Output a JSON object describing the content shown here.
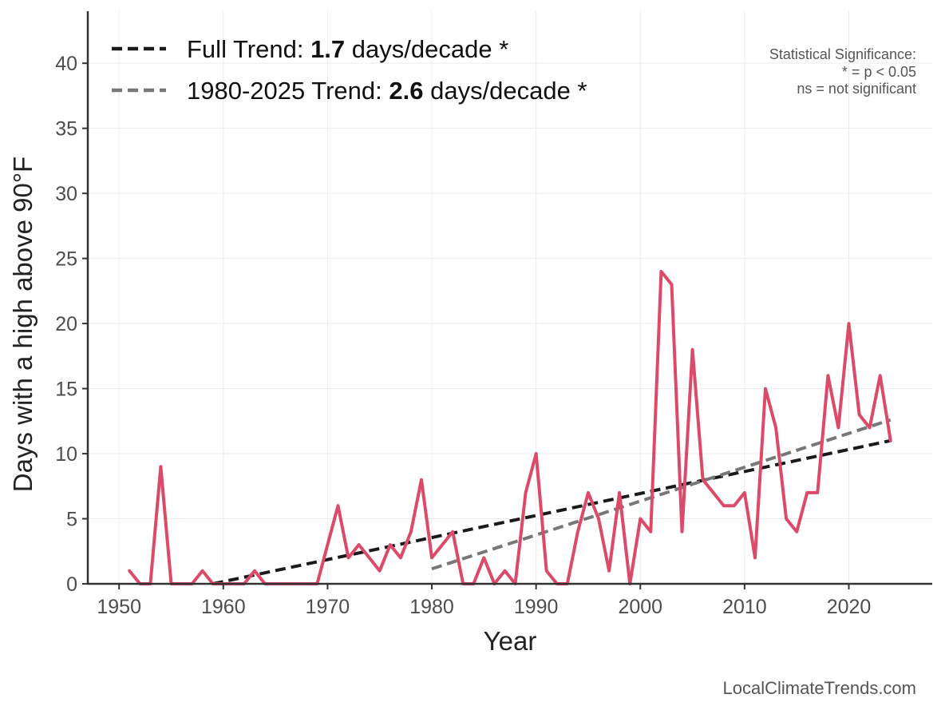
{
  "chart_data": {
    "type": "line",
    "xlabel": "Year",
    "ylabel": "Days with a high above 90°F",
    "xlim": [
      1947,
      2028
    ],
    "ylim": [
      0,
      44
    ],
    "xticks": [
      1950,
      1960,
      1970,
      1980,
      1990,
      2000,
      2010,
      2020
    ],
    "yticks": [
      0,
      5,
      10,
      15,
      20,
      25,
      30,
      35,
      40
    ],
    "grid": true,
    "series": [
      {
        "name": "Days with a high above 90°F",
        "color": "#dc4a6a",
        "x": [
          1951,
          1952,
          1953,
          1954,
          1955,
          1956,
          1957,
          1958,
          1959,
          1960,
          1961,
          1962,
          1963,
          1964,
          1965,
          1966,
          1967,
          1968,
          1969,
          1970,
          1971,
          1972,
          1973,
          1974,
          1975,
          1976,
          1977,
          1978,
          1979,
          1980,
          1981,
          1982,
          1983,
          1984,
          1985,
          1986,
          1987,
          1988,
          1989,
          1990,
          1991,
          1992,
          1993,
          1994,
          1995,
          1996,
          1997,
          1998,
          1999,
          2000,
          2001,
          2002,
          2003,
          2004,
          2005,
          2006,
          2007,
          2008,
          2009,
          2010,
          2011,
          2012,
          2013,
          2014,
          2015,
          2016,
          2017,
          2018,
          2019,
          2020,
          2021,
          2022,
          2023,
          2024
        ],
        "values": [
          1,
          0,
          0,
          9,
          0,
          0,
          0,
          1,
          0,
          0,
          0,
          0,
          1,
          0,
          0,
          0,
          0,
          0,
          0,
          3,
          6,
          2,
          3,
          2,
          1,
          3,
          2,
          4,
          8,
          2,
          3,
          4,
          0,
          0,
          2,
          0,
          1,
          0,
          7,
          10,
          1,
          0,
          0,
          4,
          7,
          5,
          1,
          7,
          0,
          5,
          4,
          24,
          23,
          4,
          18,
          8,
          7,
          6,
          6,
          7,
          2,
          15,
          12,
          5,
          4,
          7,
          7,
          16,
          12,
          20,
          13,
          12,
          16,
          11
        ]
      }
    ],
    "trends": [
      {
        "name": "Full Trend",
        "label_prefix": "Full Trend: ",
        "rate": "1.7",
        "label_suffix": " days/decade *",
        "color": "#1a1a1a",
        "x": [
          1959,
          2024
        ],
        "y": [
          0.0,
          11.0
        ]
      },
      {
        "name": "1980-2025 Trend",
        "label_prefix": "1980-2025 Trend: ",
        "rate": "2.6",
        "label_suffix": " days/decade *",
        "color": "#777777",
        "x": [
          1980,
          2024
        ],
        "y": [
          1.15,
          12.6
        ]
      }
    ],
    "legend_position": "top-left",
    "annotations": [
      "Statistical Significance:",
      "* = p < 0.05",
      "ns = not significant"
    ]
  },
  "footer": "LocalClimateTrends.com"
}
